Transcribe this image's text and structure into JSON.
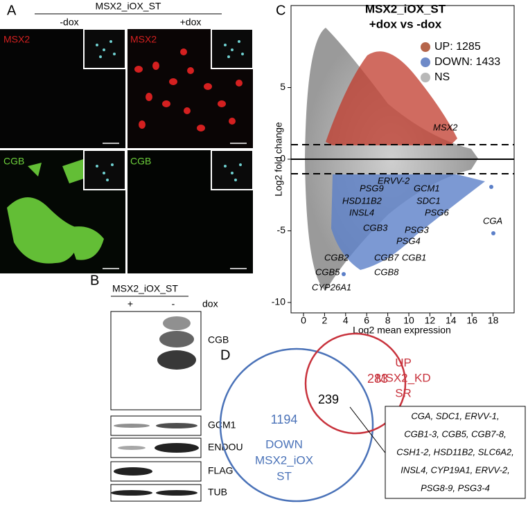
{
  "panel_a": {
    "label": "A",
    "title": "MSX2_iOX_ST",
    "conditions": [
      "-dox",
      "+dox"
    ],
    "rows": [
      "MSX2",
      "CGB"
    ]
  },
  "panel_b": {
    "label": "B",
    "title": "MSX2_iOX_ST",
    "lanes": [
      "+",
      "-"
    ],
    "lane_title": "dox",
    "blots": [
      "CGB",
      "GCM1",
      "ENDOU",
      "FLAG",
      "TUB"
    ]
  },
  "panel_c": {
    "label": "C",
    "title": [
      "MSX2_iOX_ST",
      "+dox vs -dox"
    ],
    "x_label": "Log2 mean expression",
    "y_label": "Log2 fold change",
    "xticks": [
      0,
      2,
      4,
      6,
      8,
      10,
      12,
      14,
      16,
      18
    ],
    "yticks": [
      5,
      0,
      -5,
      -10
    ],
    "legend": [
      "UP: 1285",
      "DOWN: 1433",
      "NS"
    ],
    "genes": [
      "MSX2",
      "ERVV-2",
      "PSG9",
      "GCM1",
      "HSD11B2",
      "SDC1",
      "INSL4",
      "PSG6",
      "CGA",
      "CGB3",
      "PSG3",
      "PSG4",
      "CGB7",
      "CGB1",
      "CGB2",
      "CGB5",
      "CGB8",
      "CYP26A1"
    ]
  },
  "panel_d": {
    "label": "D",
    "overlap": "239",
    "up_count": "283",
    "up_label": [
      "UP",
      "MSX2_KD",
      "SR"
    ],
    "down_count": "1194",
    "down_label": [
      "DOWN",
      "MSX2_iOX",
      "ST"
    ],
    "genes_box": [
      "CGA, SDC1, ERVV-1,",
      "CGB1-3, CGB5, CGB7-8,",
      "CSH1-2, HSD11B2, SLC6A2,",
      "INSL4, CYP19A1, ERVV-2,",
      "PSG8-9, PSG3-4"
    ]
  }
}
